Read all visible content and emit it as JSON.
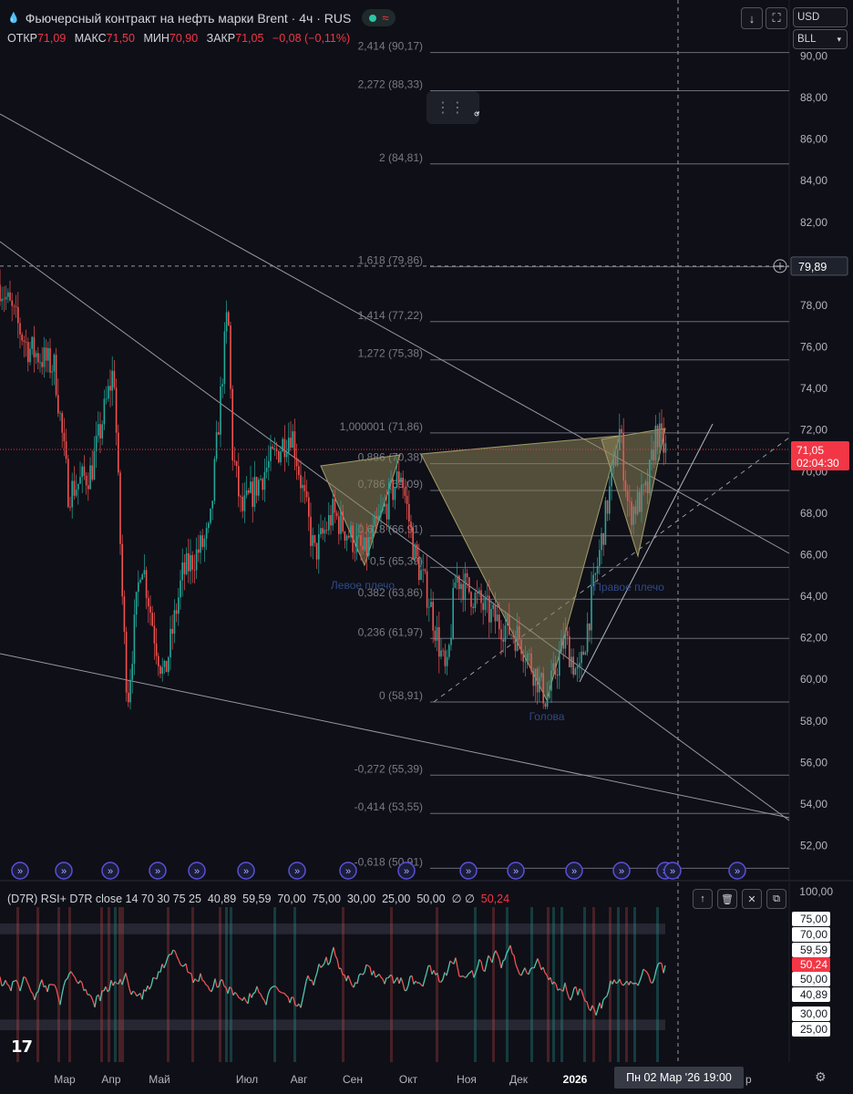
{
  "header": {
    "instrument": "Фьючерсный контракт на нефть марки Brent · 4ч · RUS",
    "ohlc": [
      {
        "label": "ОТКР",
        "value": "71,09"
      },
      {
        "label": "МАКС",
        "value": "71,50"
      },
      {
        "label": "МИН",
        "value": "70,90"
      },
      {
        "label": "ЗАКР",
        "value": "71,05"
      }
    ],
    "change": "−0,08 (−0,11%)",
    "currency": "USD",
    "unit": "BLL"
  },
  "colors": {
    "bg": "#0f0f17",
    "up": "#26a69a",
    "down": "#ef5350",
    "accent_red": "#f23645",
    "fib": "#787b86",
    "pattern": "#8a8458"
  },
  "price_axis": {
    "ticks": [
      "90,00",
      "88,00",
      "86,00",
      "84,00",
      "82,00",
      "80,00",
      "78,00",
      "76,00",
      "74,00",
      "72,00",
      "70,00",
      "68,00",
      "66,00",
      "64,00",
      "62,00",
      "60,00",
      "58,00",
      "56,00",
      "54,00",
      "52,00"
    ],
    "crosshair_label": "79,89",
    "last_price": "71,05",
    "countdown": "02:04:30"
  },
  "fib_levels": [
    {
      "text": "2,414 (90,17)",
      "price": 90.17
    },
    {
      "text": "2,272 (88,33)",
      "price": 88.33
    },
    {
      "text": "2 (84,81)",
      "price": 84.81
    },
    {
      "text": "1,618 (79,86)",
      "price": 79.86
    },
    {
      "text": "1,414 (77,22)",
      "price": 77.22
    },
    {
      "text": "1,272 (75,38)",
      "price": 75.38
    },
    {
      "text": "1,000001 (71,86)",
      "price": 71.86
    },
    {
      "text": "0,886 (70,38)",
      "price": 70.38
    },
    {
      "text": "0,786 (69,09)",
      "price": 69.09
    },
    {
      "text": "0,618 (66,91)",
      "price": 66.91
    },
    {
      "text": "0,5 (65,39)",
      "price": 65.39
    },
    {
      "text": "0,382 (63,86)",
      "price": 63.86
    },
    {
      "text": "0,236 (61,97)",
      "price": 61.97
    },
    {
      "text": "0 (58,91)",
      "price": 58.91
    },
    {
      "text": "-0,272 (55,39)",
      "price": 55.39
    },
    {
      "text": "-0,414 (53,55)",
      "price": 53.55
    },
    {
      "text": "-0,618 (50,91)",
      "price": 50.91
    }
  ],
  "pattern_labels": {
    "left_shoulder": "Левое плечо",
    "head": "Голова",
    "right_shoulder": "Правое плечо"
  },
  "time_axis": {
    "labels": [
      "Мар",
      "Апр",
      "Май",
      "Июл",
      "Авг",
      "Сен",
      "Окт",
      "Ноя",
      "Дек",
      "2026"
    ],
    "crosshair_label": "Пн 02 Мар '26   19:00",
    "partial_label": "р"
  },
  "rsi": {
    "legend_name": "(D7R) RSI+ D7R close 14 70 30 75 25",
    "legend_values": [
      "40,89",
      "59,59",
      "70,00",
      "75,00",
      "30,00",
      "25,00",
      "50,00"
    ],
    "legend_last": "50,24",
    "ticks": [
      {
        "text": "100,00",
        "boxed": false
      },
      {
        "text": "75,00",
        "boxed": true
      },
      {
        "text": "70,00",
        "boxed": true
      },
      {
        "text": "59,59",
        "boxed": true
      },
      {
        "text": "50,24",
        "boxed": true,
        "highlight": true
      },
      {
        "text": "50,00",
        "boxed": true
      },
      {
        "text": "40,89",
        "boxed": true
      },
      {
        "text": "30,00",
        "boxed": true
      },
      {
        "text": "25,00",
        "boxed": true
      }
    ]
  },
  "icons": [
    "drop-icon",
    "download-icon",
    "fullscreen-icon",
    "trendline-tool-icon",
    "crosshair-plus-icon",
    "arrow-up-icon",
    "trash-icon",
    "close-icon",
    "maximize-icon",
    "gear-icon",
    "tradingview-logo-icon",
    "event-marker-icon"
  ]
}
